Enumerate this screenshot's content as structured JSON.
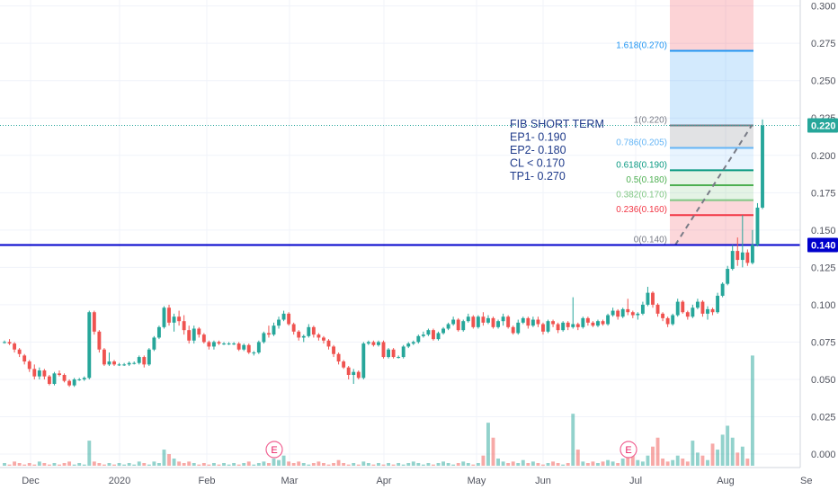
{
  "chart_data": {
    "type": "candlestick",
    "y_axis": {
      "ticks": [
        "0.300",
        "0.275",
        "0.250",
        "0.225",
        "0.200",
        "0.175",
        "0.150",
        "0.125",
        "0.100",
        "0.075",
        "0.050",
        "0.025",
        "0.000"
      ],
      "range": [
        -0.009,
        0.304
      ]
    },
    "x_axis": {
      "ticks": [
        "Dec",
        "2020",
        "Feb",
        "Mar",
        "Apr",
        "May",
        "Jun",
        "Jul",
        "Aug",
        "Se"
      ]
    },
    "price_labels": [
      {
        "value": 0.22,
        "text": "0.220",
        "color": "#26a69a"
      },
      {
        "value": 0.14,
        "text": "0.140",
        "color": "#0000cc"
      }
    ],
    "horizontal_lines": [
      {
        "value": 0.14,
        "color": "#0000cc",
        "style": "solid"
      },
      {
        "value": 0.22,
        "color": "#26a69a",
        "style": "dotted"
      }
    ],
    "fibonacci": {
      "levels": [
        {
          "label": "1.618(0.270)",
          "value": 0.27,
          "color": "#2196f3"
        },
        {
          "label": "1(0.220)",
          "value": 0.22,
          "color": "#787b86"
        },
        {
          "label": "0.786(0.205)",
          "value": 0.205,
          "color": "#64b5f6"
        },
        {
          "label": "0.618(0.190)",
          "value": 0.19,
          "color": "#089981"
        },
        {
          "label": "0.5(0.180)",
          "value": 0.18,
          "color": "#4caf50"
        },
        {
          "label": "0.382(0.170)",
          "value": 0.17,
          "color": "#81c784"
        },
        {
          "label": "0.236(0.160)",
          "value": 0.16,
          "color": "#f23645"
        },
        {
          "label": "0(0.140)",
          "value": 0.14,
          "color": "#787b86"
        }
      ]
    },
    "annotation": {
      "lines": [
        "FIB SHORT TERM",
        "EP1- 0.190",
        "EP2- 0.180",
        "CL < 0.170",
        "TP1- 0.270"
      ],
      "color": "#1e3a8a"
    },
    "event_markers": [
      "E",
      "E"
    ],
    "candles": [
      [
        0.075,
        0.076,
        0.074,
        0.075
      ],
      [
        0.075,
        0.077,
        0.073,
        0.074
      ],
      [
        0.074,
        0.075,
        0.068,
        0.07
      ],
      [
        0.07,
        0.071,
        0.065,
        0.067
      ],
      [
        0.066,
        0.067,
        0.06,
        0.062
      ],
      [
        0.062,
        0.063,
        0.055,
        0.057
      ],
      [
        0.057,
        0.06,
        0.05,
        0.052
      ],
      [
        0.052,
        0.058,
        0.05,
        0.056
      ],
      [
        0.056,
        0.057,
        0.05,
        0.052
      ],
      [
        0.052,
        0.053,
        0.046,
        0.047
      ],
      [
        0.047,
        0.055,
        0.046,
        0.054
      ],
      [
        0.054,
        0.056,
        0.052,
        0.053
      ],
      [
        0.053,
        0.054,
        0.048,
        0.049
      ],
      [
        0.049,
        0.05,
        0.045,
        0.046
      ],
      [
        0.046,
        0.051,
        0.045,
        0.05
      ],
      [
        0.05,
        0.051,
        0.049,
        0.05
      ],
      [
        0.05,
        0.052,
        0.049,
        0.051
      ],
      [
        0.051,
        0.096,
        0.05,
        0.095
      ],
      [
        0.095,
        0.096,
        0.08,
        0.082
      ],
      [
        0.082,
        0.083,
        0.068,
        0.07
      ],
      [
        0.07,
        0.071,
        0.059,
        0.06
      ],
      [
        0.06,
        0.068,
        0.059,
        0.062
      ],
      [
        0.062,
        0.063,
        0.059,
        0.06
      ],
      [
        0.06,
        0.061,
        0.059,
        0.06
      ],
      [
        0.06,
        0.061,
        0.059,
        0.06
      ],
      [
        0.06,
        0.062,
        0.059,
        0.061
      ],
      [
        0.061,
        0.062,
        0.06,
        0.061
      ],
      [
        0.061,
        0.066,
        0.06,
        0.065
      ],
      [
        0.065,
        0.066,
        0.058,
        0.06
      ],
      [
        0.06,
        0.071,
        0.059,
        0.07
      ],
      [
        0.07,
        0.079,
        0.069,
        0.078
      ],
      [
        0.078,
        0.086,
        0.077,
        0.085
      ],
      [
        0.085,
        0.099,
        0.084,
        0.098
      ],
      [
        0.098,
        0.1,
        0.086,
        0.088
      ],
      [
        0.088,
        0.094,
        0.082,
        0.092
      ],
      [
        0.092,
        0.096,
        0.086,
        0.089
      ],
      [
        0.089,
        0.093,
        0.08,
        0.083
      ],
      [
        0.083,
        0.086,
        0.074,
        0.076
      ],
      [
        0.076,
        0.086,
        0.074,
        0.084
      ],
      [
        0.084,
        0.085,
        0.078,
        0.08
      ],
      [
        0.08,
        0.081,
        0.074,
        0.075
      ],
      [
        0.075,
        0.076,
        0.07,
        0.072
      ],
      [
        0.072,
        0.076,
        0.07,
        0.075
      ],
      [
        0.075,
        0.076,
        0.073,
        0.074
      ],
      [
        0.074,
        0.075,
        0.073,
        0.074
      ],
      [
        0.074,
        0.075,
        0.073,
        0.074
      ],
      [
        0.074,
        0.075,
        0.073,
        0.074
      ],
      [
        0.074,
        0.075,
        0.069,
        0.07
      ],
      [
        0.07,
        0.074,
        0.069,
        0.073
      ],
      [
        0.073,
        0.074,
        0.067,
        0.068
      ],
      [
        0.068,
        0.069,
        0.066,
        0.068
      ],
      [
        0.068,
        0.076,
        0.067,
        0.075
      ],
      [
        0.075,
        0.082,
        0.074,
        0.081
      ],
      [
        0.081,
        0.086,
        0.078,
        0.08
      ],
      [
        0.08,
        0.088,
        0.079,
        0.086
      ],
      [
        0.086,
        0.092,
        0.084,
        0.09
      ],
      [
        0.09,
        0.096,
        0.089,
        0.094
      ],
      [
        0.094,
        0.095,
        0.086,
        0.087
      ],
      [
        0.087,
        0.088,
        0.08,
        0.082
      ],
      [
        0.082,
        0.083,
        0.076,
        0.078
      ],
      [
        0.078,
        0.08,
        0.075,
        0.079
      ],
      [
        0.079,
        0.087,
        0.078,
        0.085
      ],
      [
        0.085,
        0.086,
        0.078,
        0.08
      ],
      [
        0.08,
        0.081,
        0.076,
        0.078
      ],
      [
        0.078,
        0.079,
        0.074,
        0.076
      ],
      [
        0.076,
        0.077,
        0.07,
        0.072
      ],
      [
        0.072,
        0.073,
        0.065,
        0.067
      ],
      [
        0.067,
        0.068,
        0.06,
        0.062
      ],
      [
        0.062,
        0.063,
        0.057,
        0.058
      ],
      [
        0.058,
        0.059,
        0.05,
        0.053
      ],
      [
        0.053,
        0.057,
        0.047,
        0.055
      ],
      [
        0.055,
        0.056,
        0.05,
        0.051
      ],
      [
        0.051,
        0.075,
        0.05,
        0.074
      ],
      [
        0.074,
        0.076,
        0.073,
        0.075
      ],
      [
        0.075,
        0.076,
        0.072,
        0.073
      ],
      [
        0.073,
        0.076,
        0.072,
        0.075
      ],
      [
        0.075,
        0.076,
        0.064,
        0.065
      ],
      [
        0.065,
        0.071,
        0.064,
        0.07
      ],
      [
        0.07,
        0.071,
        0.064,
        0.065
      ],
      [
        0.065,
        0.066,
        0.064,
        0.065
      ],
      [
        0.065,
        0.073,
        0.064,
        0.072
      ],
      [
        0.072,
        0.075,
        0.071,
        0.074
      ],
      [
        0.074,
        0.076,
        0.073,
        0.075
      ],
      [
        0.075,
        0.08,
        0.074,
        0.079
      ],
      [
        0.079,
        0.082,
        0.078,
        0.08
      ],
      [
        0.08,
        0.084,
        0.079,
        0.083
      ],
      [
        0.083,
        0.084,
        0.076,
        0.077
      ],
      [
        0.077,
        0.082,
        0.076,
        0.081
      ],
      [
        0.081,
        0.085,
        0.08,
        0.084
      ],
      [
        0.084,
        0.088,
        0.083,
        0.087
      ],
      [
        0.087,
        0.092,
        0.086,
        0.09
      ],
      [
        0.09,
        0.091,
        0.082,
        0.083
      ],
      [
        0.083,
        0.09,
        0.082,
        0.089
      ],
      [
        0.089,
        0.094,
        0.088,
        0.092
      ],
      [
        0.092,
        0.093,
        0.084,
        0.085
      ],
      [
        0.085,
        0.093,
        0.084,
        0.092
      ],
      [
        0.092,
        0.095,
        0.086,
        0.088
      ],
      [
        0.088,
        0.093,
        0.087,
        0.091
      ],
      [
        0.091,
        0.092,
        0.084,
        0.085
      ],
      [
        0.085,
        0.09,
        0.084,
        0.089
      ],
      [
        0.089,
        0.094,
        0.086,
        0.092
      ],
      [
        0.092,
        0.093,
        0.084,
        0.085
      ],
      [
        0.085,
        0.086,
        0.08,
        0.081
      ],
      [
        0.081,
        0.09,
        0.08,
        0.088
      ],
      [
        0.088,
        0.092,
        0.087,
        0.091
      ],
      [
        0.091,
        0.092,
        0.084,
        0.086
      ],
      [
        0.086,
        0.092,
        0.085,
        0.09
      ],
      [
        0.09,
        0.092,
        0.085,
        0.087
      ],
      [
        0.087,
        0.088,
        0.08,
        0.082
      ],
      [
        0.082,
        0.09,
        0.081,
        0.089
      ],
      [
        0.089,
        0.09,
        0.085,
        0.087
      ],
      [
        0.087,
        0.088,
        0.081,
        0.083
      ],
      [
        0.083,
        0.089,
        0.082,
        0.088
      ],
      [
        0.088,
        0.089,
        0.083,
        0.085
      ],
      [
        0.085,
        0.105,
        0.084,
        0.087
      ],
      [
        0.087,
        0.088,
        0.083,
        0.085
      ],
      [
        0.085,
        0.092,
        0.084,
        0.091
      ],
      [
        0.091,
        0.092,
        0.086,
        0.088
      ],
      [
        0.088,
        0.089,
        0.085,
        0.086
      ],
      [
        0.086,
        0.09,
        0.085,
        0.089
      ],
      [
        0.089,
        0.09,
        0.086,
        0.087
      ],
      [
        0.087,
        0.094,
        0.086,
        0.093
      ],
      [
        0.093,
        0.098,
        0.092,
        0.096
      ],
      [
        0.096,
        0.097,
        0.09,
        0.092
      ],
      [
        0.092,
        0.098,
        0.091,
        0.097
      ],
      [
        0.097,
        0.104,
        0.093,
        0.095
      ],
      [
        0.095,
        0.096,
        0.091,
        0.093
      ],
      [
        0.093,
        0.095,
        0.09,
        0.094
      ],
      [
        0.094,
        0.102,
        0.093,
        0.1
      ],
      [
        0.1,
        0.112,
        0.099,
        0.108
      ],
      [
        0.108,
        0.109,
        0.098,
        0.1
      ],
      [
        0.1,
        0.101,
        0.092,
        0.094
      ],
      [
        0.094,
        0.095,
        0.089,
        0.091
      ],
      [
        0.091,
        0.092,
        0.085,
        0.087
      ],
      [
        0.087,
        0.094,
        0.086,
        0.093
      ],
      [
        0.093,
        0.104,
        0.092,
        0.102
      ],
      [
        0.102,
        0.103,
        0.094,
        0.095
      ],
      [
        0.095,
        0.096,
        0.09,
        0.092
      ],
      [
        0.092,
        0.1,
        0.091,
        0.098
      ],
      [
        0.098,
        0.104,
        0.097,
        0.102
      ],
      [
        0.102,
        0.103,
        0.092,
        0.094
      ],
      [
        0.094,
        0.099,
        0.09,
        0.097
      ],
      [
        0.097,
        0.098,
        0.093,
        0.095
      ],
      [
        0.095,
        0.108,
        0.094,
        0.106
      ],
      [
        0.106,
        0.115,
        0.105,
        0.114
      ],
      [
        0.114,
        0.126,
        0.113,
        0.124
      ],
      [
        0.124,
        0.14,
        0.123,
        0.136
      ],
      [
        0.136,
        0.145,
        0.126,
        0.13
      ],
      [
        0.13,
        0.16,
        0.125,
        0.135
      ],
      [
        0.135,
        0.137,
        0.126,
        0.128
      ],
      [
        0.128,
        0.15,
        0.127,
        0.14
      ],
      [
        0.14,
        0.168,
        0.139,
        0.165
      ],
      [
        0.165,
        0.224,
        0.164,
        0.22
      ]
    ],
    "volumes": [
      0.003,
      0.002,
      0.004,
      0.003,
      0.002,
      0.003,
      0.002,
      0.004,
      0.003,
      0.002,
      0.003,
      0.002,
      0.003,
      0.004,
      0.002,
      0.003,
      0.002,
      0.018,
      0.004,
      0.003,
      0.002,
      0.003,
      0.002,
      0.003,
      0.002,
      0.003,
      0.002,
      0.004,
      0.003,
      0.002,
      0.004,
      0.003,
      0.012,
      0.009,
      0.006,
      0.004,
      0.003,
      0.004,
      0.003,
      0.002,
      0.003,
      0.002,
      0.003,
      0.002,
      0.003,
      0.002,
      0.003,
      0.002,
      0.003,
      0.004,
      0.002,
      0.003,
      0.004,
      0.003,
      0.006,
      0.005,
      0.008,
      0.004,
      0.003,
      0.004,
      0.003,
      0.002,
      0.003,
      0.004,
      0.003,
      0.002,
      0.003,
      0.005,
      0.003,
      0.002,
      0.003,
      0.002,
      0.004,
      0.003,
      0.002,
      0.003,
      0.002,
      0.003,
      0.002,
      0.003,
      0.002,
      0.003,
      0.004,
      0.003,
      0.002,
      0.003,
      0.002,
      0.003,
      0.004,
      0.003,
      0.002,
      0.003,
      0.004,
      0.003,
      0.002,
      0.003,
      0.008,
      0.03,
      0.02,
      0.006,
      0.004,
      0.003,
      0.004,
      0.003,
      0.005,
      0.003,
      0.004,
      0.003,
      0.002,
      0.003,
      0.004,
      0.003,
      0.002,
      0.003,
      0.036,
      0.012,
      0.004,
      0.003,
      0.004,
      0.003,
      0.004,
      0.005,
      0.004,
      0.003,
      0.006,
      0.012,
      0.008,
      0.005,
      0.004,
      0.008,
      0.014,
      0.02,
      0.006,
      0.004,
      0.005,
      0.008,
      0.006,
      0.004,
      0.018,
      0.01,
      0.008,
      0.005,
      0.016,
      0.012,
      0.022,
      0.028,
      0.02,
      0.01,
      0.014,
      0.006,
      0.075
    ]
  }
}
